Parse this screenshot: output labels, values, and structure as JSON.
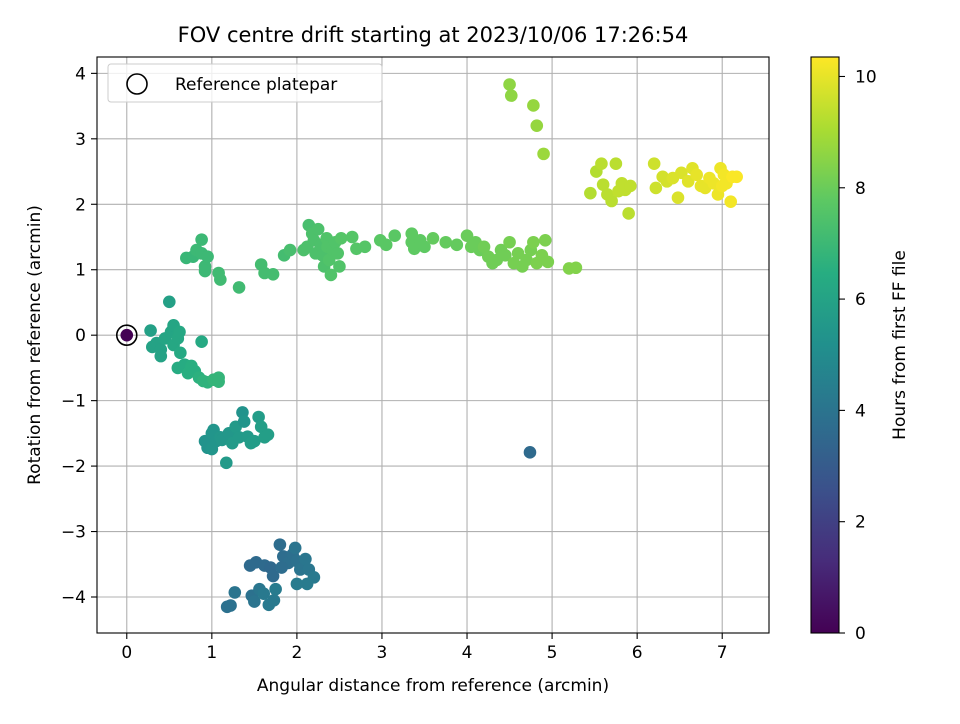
{
  "chart_data": {
    "type": "scatter",
    "title": "FOV centre drift starting at 2023/10/06 17:26:54",
    "xlabel": "Angular distance from reference (arcmin)",
    "ylabel": "Rotation from reference (arcmin)",
    "xlim": [
      -0.35,
      7.55
    ],
    "ylim": [
      -4.55,
      4.25
    ],
    "xticks": [
      0,
      1,
      2,
      3,
      4,
      5,
      6,
      7
    ],
    "yticks": [
      -4,
      -3,
      -2,
      -1,
      0,
      1,
      2,
      3,
      4
    ],
    "grid": true,
    "legend": {
      "placement": "top-left",
      "entries": [
        "Reference platepar"
      ]
    },
    "colorbar": {
      "label": "Hours from first FF file",
      "range": [
        0,
        10.35
      ],
      "ticks": [
        0,
        2,
        4,
        6,
        8,
        10
      ],
      "colormap": "viridis"
    },
    "reference_point": {
      "x": 0,
      "y": 0,
      "hours": 0
    },
    "points": [
      {
        "x": 0.0,
        "y": 0.0,
        "h": 0.0
      },
      {
        "x": 4.74,
        "y": -1.79,
        "h": 3.6
      },
      {
        "x": 1.18,
        "y": -4.15,
        "h": 3.9
      },
      {
        "x": 1.22,
        "y": -4.13,
        "h": 3.9
      },
      {
        "x": 1.27,
        "y": -3.93,
        "h": 4.0
      },
      {
        "x": 1.47,
        "y": -3.98,
        "h": 3.9
      },
      {
        "x": 1.5,
        "y": -4.07,
        "h": 4.0
      },
      {
        "x": 1.56,
        "y": -3.88,
        "h": 4.1
      },
      {
        "x": 1.67,
        "y": -4.12,
        "h": 4.2
      },
      {
        "x": 1.73,
        "y": -4.05,
        "h": 4.2
      },
      {
        "x": 1.75,
        "y": -3.88,
        "h": 4.3
      },
      {
        "x": 1.61,
        "y": -3.95,
        "h": 4.2
      },
      {
        "x": 1.45,
        "y": -3.52,
        "h": 3.6
      },
      {
        "x": 1.52,
        "y": -3.47,
        "h": 3.6
      },
      {
        "x": 1.62,
        "y": -3.52,
        "h": 3.6
      },
      {
        "x": 1.69,
        "y": -3.55,
        "h": 3.5
      },
      {
        "x": 1.72,
        "y": -3.68,
        "h": 3.6
      },
      {
        "x": 1.8,
        "y": -3.2,
        "h": 3.7
      },
      {
        "x": 1.84,
        "y": -3.38,
        "h": 3.7
      },
      {
        "x": 1.9,
        "y": -3.48,
        "h": 3.8
      },
      {
        "x": 1.95,
        "y": -3.35,
        "h": 3.8
      },
      {
        "x": 1.98,
        "y": -3.25,
        "h": 4.0
      },
      {
        "x": 2.0,
        "y": -3.45,
        "h": 3.9
      },
      {
        "x": 1.82,
        "y": -3.55,
        "h": 3.7
      },
      {
        "x": 2.04,
        "y": -3.58,
        "h": 4.0
      },
      {
        "x": 2.08,
        "y": -3.55,
        "h": 4.0
      },
      {
        "x": 2.1,
        "y": -3.42,
        "h": 4.1
      },
      {
        "x": 2.14,
        "y": -3.58,
        "h": 4.1
      },
      {
        "x": 2.2,
        "y": -3.7,
        "h": 4.2
      },
      {
        "x": 2.12,
        "y": -3.8,
        "h": 4.3
      },
      {
        "x": 2.0,
        "y": -3.8,
        "h": 4.3
      },
      {
        "x": 0.92,
        "y": -1.62,
        "h": 5.3
      },
      {
        "x": 0.95,
        "y": -1.72,
        "h": 5.3
      },
      {
        "x": 1.0,
        "y": -1.74,
        "h": 5.4
      },
      {
        "x": 1.0,
        "y": -1.5,
        "h": 5.4
      },
      {
        "x": 1.02,
        "y": -1.45,
        "h": 5.4
      },
      {
        "x": 1.05,
        "y": -1.62,
        "h": 5.4
      },
      {
        "x": 1.1,
        "y": -1.56,
        "h": 5.5
      },
      {
        "x": 1.12,
        "y": -1.6,
        "h": 5.5
      },
      {
        "x": 1.17,
        "y": -1.95,
        "h": 5.6
      },
      {
        "x": 1.2,
        "y": -1.5,
        "h": 5.5
      },
      {
        "x": 1.24,
        "y": -1.65,
        "h": 5.6
      },
      {
        "x": 1.28,
        "y": -1.4,
        "h": 5.6
      },
      {
        "x": 1.32,
        "y": -1.56,
        "h": 5.6
      },
      {
        "x": 1.36,
        "y": -1.18,
        "h": 5.3
      },
      {
        "x": 1.38,
        "y": -1.32,
        "h": 5.4
      },
      {
        "x": 1.42,
        "y": -1.55,
        "h": 5.6
      },
      {
        "x": 1.46,
        "y": -1.65,
        "h": 5.7
      },
      {
        "x": 1.5,
        "y": -1.62,
        "h": 5.7
      },
      {
        "x": 1.55,
        "y": -1.25,
        "h": 5.7
      },
      {
        "x": 1.58,
        "y": -1.4,
        "h": 5.8
      },
      {
        "x": 1.62,
        "y": -1.56,
        "h": 5.8
      },
      {
        "x": 1.66,
        "y": -1.52,
        "h": 5.8
      },
      {
        "x": 0.28,
        "y": 0.07,
        "h": 5.9
      },
      {
        "x": 0.3,
        "y": -0.18,
        "h": 6.0
      },
      {
        "x": 0.35,
        "y": -0.12,
        "h": 6.0
      },
      {
        "x": 0.4,
        "y": -0.22,
        "h": 6.0
      },
      {
        "x": 0.4,
        "y": -0.32,
        "h": 6.0
      },
      {
        "x": 0.45,
        "y": -0.05,
        "h": 6.1
      },
      {
        "x": 0.5,
        "y": 0.51,
        "h": 5.9
      },
      {
        "x": 0.52,
        "y": 0.05,
        "h": 6.1
      },
      {
        "x": 0.55,
        "y": 0.15,
        "h": 6.1
      },
      {
        "x": 0.55,
        "y": -0.15,
        "h": 6.2
      },
      {
        "x": 0.6,
        "y": -0.05,
        "h": 6.2
      },
      {
        "x": 0.62,
        "y": 0.05,
        "h": 6.2
      },
      {
        "x": 0.63,
        "y": -0.27,
        "h": 6.3
      },
      {
        "x": 0.6,
        "y": -0.5,
        "h": 6.4
      },
      {
        "x": 0.68,
        "y": -0.45,
        "h": 6.4
      },
      {
        "x": 0.72,
        "y": -0.58,
        "h": 6.5
      },
      {
        "x": 0.76,
        "y": -0.47,
        "h": 6.5
      },
      {
        "x": 0.8,
        "y": -0.55,
        "h": 6.5
      },
      {
        "x": 0.85,
        "y": -0.65,
        "h": 6.6
      },
      {
        "x": 0.88,
        "y": -0.1,
        "h": 6.3
      },
      {
        "x": 0.9,
        "y": -0.7,
        "h": 6.7
      },
      {
        "x": 0.95,
        "y": -0.72,
        "h": 6.7
      },
      {
        "x": 1.02,
        "y": -0.68,
        "h": 6.8
      },
      {
        "x": 1.08,
        "y": -0.65,
        "h": 6.8
      },
      {
        "x": 1.08,
        "y": -0.71,
        "h": 6.8
      },
      {
        "x": 0.7,
        "y": 1.18,
        "h": 6.9
      },
      {
        "x": 0.78,
        "y": 1.2,
        "h": 6.9
      },
      {
        "x": 0.82,
        "y": 1.3,
        "h": 7.0
      },
      {
        "x": 0.88,
        "y": 1.46,
        "h": 7.0
      },
      {
        "x": 0.88,
        "y": 1.25,
        "h": 7.0
      },
      {
        "x": 0.92,
        "y": 1.05,
        "h": 7.0
      },
      {
        "x": 0.92,
        "y": 0.98,
        "h": 7.0
      },
      {
        "x": 0.95,
        "y": 1.2,
        "h": 7.0
      },
      {
        "x": 1.08,
        "y": 0.95,
        "h": 7.1
      },
      {
        "x": 1.1,
        "y": 0.85,
        "h": 7.1
      },
      {
        "x": 1.32,
        "y": 0.73,
        "h": 7.1
      },
      {
        "x": 1.58,
        "y": 1.08,
        "h": 7.2
      },
      {
        "x": 1.62,
        "y": 0.95,
        "h": 7.2
      },
      {
        "x": 1.72,
        "y": 0.93,
        "h": 7.2
      },
      {
        "x": 1.85,
        "y": 1.22,
        "h": 7.2
      },
      {
        "x": 1.92,
        "y": 1.3,
        "h": 7.3
      },
      {
        "x": 2.08,
        "y": 1.3,
        "h": 7.4
      },
      {
        "x": 2.12,
        "y": 1.35,
        "h": 7.4
      },
      {
        "x": 2.14,
        "y": 1.68,
        "h": 7.3
      },
      {
        "x": 2.18,
        "y": 1.55,
        "h": 7.4
      },
      {
        "x": 2.2,
        "y": 1.45,
        "h": 7.4
      },
      {
        "x": 2.22,
        "y": 1.25,
        "h": 7.4
      },
      {
        "x": 2.25,
        "y": 1.62,
        "h": 7.4
      },
      {
        "x": 2.28,
        "y": 1.38,
        "h": 7.4
      },
      {
        "x": 2.3,
        "y": 1.22,
        "h": 7.4
      },
      {
        "x": 2.32,
        "y": 1.05,
        "h": 7.4
      },
      {
        "x": 2.35,
        "y": 1.48,
        "h": 7.5
      },
      {
        "x": 2.36,
        "y": 1.35,
        "h": 7.5
      },
      {
        "x": 2.38,
        "y": 1.15,
        "h": 7.5
      },
      {
        "x": 2.4,
        "y": 0.92,
        "h": 7.5
      },
      {
        "x": 2.42,
        "y": 1.3,
        "h": 7.5
      },
      {
        "x": 2.45,
        "y": 1.42,
        "h": 7.5
      },
      {
        "x": 2.48,
        "y": 1.25,
        "h": 7.5
      },
      {
        "x": 2.5,
        "y": 1.05,
        "h": 7.5
      },
      {
        "x": 2.52,
        "y": 1.48,
        "h": 7.6
      },
      {
        "x": 2.65,
        "y": 1.5,
        "h": 7.6
      },
      {
        "x": 2.7,
        "y": 1.32,
        "h": 7.6
      },
      {
        "x": 2.8,
        "y": 1.35,
        "h": 7.6
      },
      {
        "x": 2.98,
        "y": 1.45,
        "h": 7.7
      },
      {
        "x": 3.05,
        "y": 1.38,
        "h": 7.7
      },
      {
        "x": 3.15,
        "y": 1.52,
        "h": 7.7
      },
      {
        "x": 3.35,
        "y": 1.55,
        "h": 7.8
      },
      {
        "x": 3.35,
        "y": 1.42,
        "h": 7.8
      },
      {
        "x": 3.38,
        "y": 1.32,
        "h": 7.8
      },
      {
        "x": 3.45,
        "y": 1.45,
        "h": 7.8
      },
      {
        "x": 3.5,
        "y": 1.35,
        "h": 7.8
      },
      {
        "x": 3.6,
        "y": 1.48,
        "h": 7.9
      },
      {
        "x": 3.75,
        "y": 1.42,
        "h": 7.9
      },
      {
        "x": 3.88,
        "y": 1.38,
        "h": 7.9
      },
      {
        "x": 4.0,
        "y": 1.52,
        "h": 8.0
      },
      {
        "x": 4.05,
        "y": 1.35,
        "h": 8.0
      },
      {
        "x": 4.1,
        "y": 1.42,
        "h": 8.0
      },
      {
        "x": 4.15,
        "y": 1.3,
        "h": 8.0
      },
      {
        "x": 4.2,
        "y": 1.35,
        "h": 8.1
      },
      {
        "x": 4.25,
        "y": 1.2,
        "h": 8.1
      },
      {
        "x": 4.3,
        "y": 1.1,
        "h": 8.1
      },
      {
        "x": 4.35,
        "y": 1.15,
        "h": 8.1
      },
      {
        "x": 4.4,
        "y": 1.3,
        "h": 8.1
      },
      {
        "x": 4.45,
        "y": 1.22,
        "h": 8.1
      },
      {
        "x": 4.5,
        "y": 1.42,
        "h": 8.2
      },
      {
        "x": 4.55,
        "y": 1.1,
        "h": 8.2
      },
      {
        "x": 4.6,
        "y": 1.25,
        "h": 8.2
      },
      {
        "x": 4.65,
        "y": 1.05,
        "h": 8.2
      },
      {
        "x": 4.7,
        "y": 1.15,
        "h": 8.2
      },
      {
        "x": 4.75,
        "y": 1.3,
        "h": 8.2
      },
      {
        "x": 4.78,
        "y": 1.42,
        "h": 8.3
      },
      {
        "x": 4.82,
        "y": 1.1,
        "h": 8.3
      },
      {
        "x": 4.88,
        "y": 1.22,
        "h": 8.3
      },
      {
        "x": 4.92,
        "y": 1.45,
        "h": 8.3
      },
      {
        "x": 4.95,
        "y": 1.12,
        "h": 8.3
      },
      {
        "x": 5.2,
        "y": 1.02,
        "h": 8.4
      },
      {
        "x": 5.28,
        "y": 1.03,
        "h": 8.4
      },
      {
        "x": 4.5,
        "y": 3.83,
        "h": 8.6
      },
      {
        "x": 4.52,
        "y": 3.66,
        "h": 8.6
      },
      {
        "x": 4.78,
        "y": 3.51,
        "h": 8.7
      },
      {
        "x": 4.82,
        "y": 3.2,
        "h": 8.7
      },
      {
        "x": 4.9,
        "y": 2.77,
        "h": 8.8
      },
      {
        "x": 5.45,
        "y": 2.17,
        "h": 9.2
      },
      {
        "x": 5.52,
        "y": 2.5,
        "h": 9.2
      },
      {
        "x": 5.58,
        "y": 2.62,
        "h": 9.3
      },
      {
        "x": 5.6,
        "y": 2.3,
        "h": 9.3
      },
      {
        "x": 5.65,
        "y": 2.15,
        "h": 9.3
      },
      {
        "x": 5.7,
        "y": 2.05,
        "h": 9.3
      },
      {
        "x": 5.75,
        "y": 2.62,
        "h": 9.3
      },
      {
        "x": 5.78,
        "y": 2.2,
        "h": 9.4
      },
      {
        "x": 5.82,
        "y": 2.32,
        "h": 9.4
      },
      {
        "x": 5.86,
        "y": 2.22,
        "h": 9.4
      },
      {
        "x": 5.9,
        "y": 1.86,
        "h": 9.3
      },
      {
        "x": 5.92,
        "y": 2.28,
        "h": 9.4
      },
      {
        "x": 6.2,
        "y": 2.62,
        "h": 9.6
      },
      {
        "x": 6.22,
        "y": 2.25,
        "h": 9.6
      },
      {
        "x": 6.3,
        "y": 2.42,
        "h": 9.7
      },
      {
        "x": 6.35,
        "y": 2.35,
        "h": 9.7
      },
      {
        "x": 6.42,
        "y": 2.4,
        "h": 9.8
      },
      {
        "x": 6.48,
        "y": 2.1,
        "h": 9.8
      },
      {
        "x": 6.52,
        "y": 2.48,
        "h": 9.8
      },
      {
        "x": 6.6,
        "y": 2.35,
        "h": 9.9
      },
      {
        "x": 6.65,
        "y": 2.55,
        "h": 9.9
      },
      {
        "x": 6.7,
        "y": 2.45,
        "h": 10.0
      },
      {
        "x": 6.75,
        "y": 2.28,
        "h": 10.0
      },
      {
        "x": 6.8,
        "y": 2.25,
        "h": 10.0
      },
      {
        "x": 6.85,
        "y": 2.4,
        "h": 10.1
      },
      {
        "x": 6.9,
        "y": 2.32,
        "h": 10.1
      },
      {
        "x": 6.95,
        "y": 2.15,
        "h": 10.1
      },
      {
        "x": 6.98,
        "y": 2.55,
        "h": 10.1
      },
      {
        "x": 7.0,
        "y": 2.28,
        "h": 10.2
      },
      {
        "x": 7.02,
        "y": 2.45,
        "h": 10.2
      },
      {
        "x": 7.05,
        "y": 2.32,
        "h": 10.2
      },
      {
        "x": 7.1,
        "y": 2.04,
        "h": 10.2
      },
      {
        "x": 7.12,
        "y": 2.42,
        "h": 10.3
      },
      {
        "x": 7.17,
        "y": 2.42,
        "h": 10.3
      }
    ]
  }
}
